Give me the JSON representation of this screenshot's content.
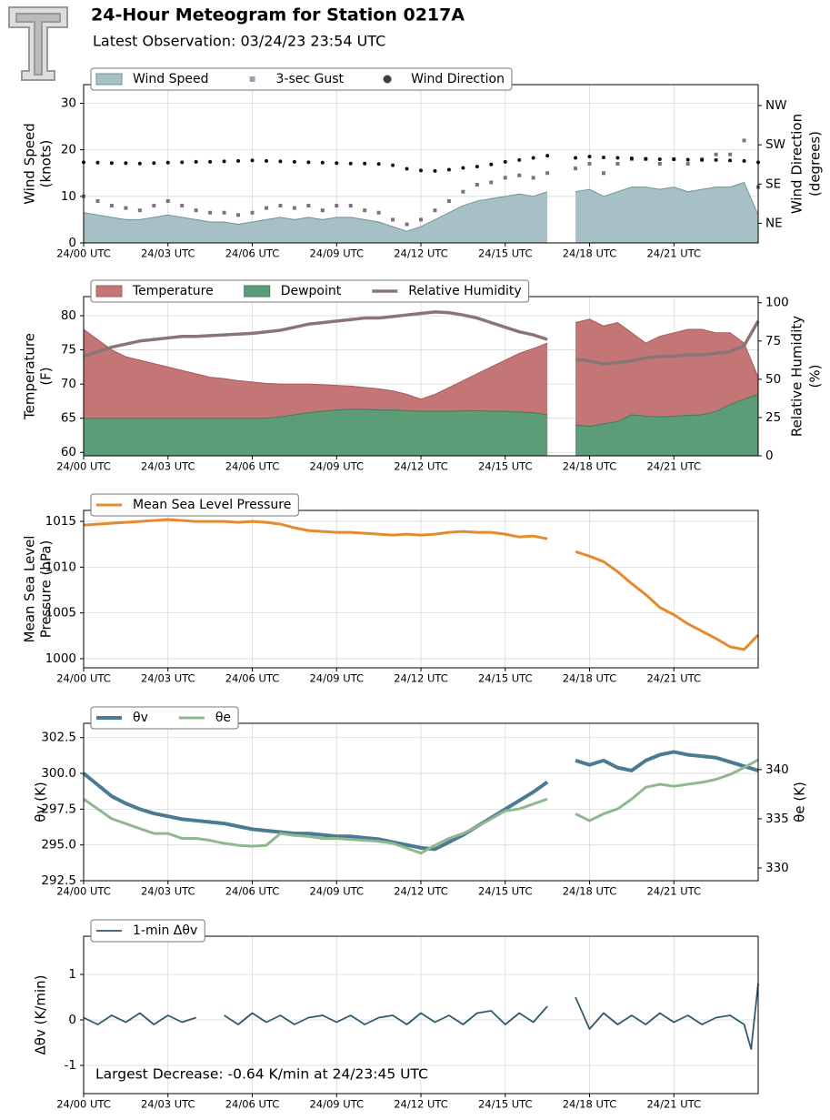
{
  "title": "24-Hour Meteogram for Station 0217A",
  "subtitle": "Latest Observation: 03/24/23 23:54 UTC",
  "chart_data": [
    {
      "type": "line",
      "legend": "upper left",
      "grid": true,
      "ylabel": [
        "Wind Speed",
        "(knots)"
      ],
      "y2label": [
        "Wind Direction",
        "(degrees)"
      ],
      "x": [
        0,
        0.5,
        1,
        1.5,
        2,
        2.5,
        3,
        3.5,
        4,
        4.5,
        5,
        5.5,
        6,
        6.5,
        7,
        7.5,
        8,
        8.5,
        9,
        9.5,
        10,
        10.5,
        11,
        11.5,
        12,
        12.5,
        13,
        13.5,
        14,
        14.5,
        15,
        15.5,
        16,
        16.5,
        17,
        17.5,
        18,
        18.5,
        19,
        19.5,
        20,
        20.5,
        21,
        21.5,
        22,
        22.5,
        23,
        23.5,
        24
      ],
      "xlim": [
        0,
        24
      ],
      "xticks": [
        {
          "value": 0,
          "label": "24/00 UTC"
        },
        {
          "value": 3,
          "label": "24/03 UTC"
        },
        {
          "value": 6,
          "label": "24/06 UTC"
        },
        {
          "value": 9,
          "label": "24/09 UTC"
        },
        {
          "value": 12,
          "label": "24/12 UTC"
        },
        {
          "value": 15,
          "label": "24/15 UTC"
        },
        {
          "value": 18,
          "label": "24/18 UTC"
        },
        {
          "value": 21,
          "label": "24/21 UTC"
        }
      ],
      "ylim": [
        0,
        34
      ],
      "yticks": [
        0,
        10,
        20,
        30
      ],
      "y2lim": [
        0,
        363
      ],
      "y2ticks": [
        {
          "value": 45,
          "label": "NE"
        },
        {
          "value": 135,
          "label": "SE"
        },
        {
          "value": 225,
          "label": "SW"
        },
        {
          "value": 315,
          "label": "NW"
        }
      ],
      "series": [
        {
          "name": "Wind Speed",
          "kind": "area",
          "color": "#a7c0c6",
          "edge": "#6e9499",
          "values": [
            6.5,
            6,
            5.5,
            5,
            5,
            5.5,
            6,
            5.5,
            5,
            4.5,
            4.5,
            4,
            4.5,
            5,
            5.5,
            5,
            5.5,
            5,
            5.5,
            5.5,
            5,
            4.5,
            3.5,
            2.5,
            3.5,
            5,
            6.5,
            8,
            9,
            9.5,
            10,
            10.5,
            10,
            11,
            null,
            11,
            11.5,
            10,
            11,
            12,
            12,
            11.5,
            12,
            11,
            11.5,
            12,
            12,
            13,
            6
          ]
        },
        {
          "name": "3-sec Gust",
          "kind": "scatter",
          "marker": "square",
          "color": "#7b6e8e",
          "values": [
            10,
            9,
            8,
            7.5,
            7,
            8,
            9,
            8,
            7,
            6.5,
            6.5,
            6,
            6.5,
            7.5,
            8,
            7.5,
            8,
            7,
            8,
            8,
            7,
            6.5,
            5,
            4,
            5,
            7,
            9,
            11,
            12.5,
            13,
            14,
            14.5,
            14,
            15,
            null,
            16,
            17,
            15,
            17,
            18,
            18,
            17,
            18,
            17,
            18,
            19,
            19,
            22,
            12
          ]
        },
        {
          "name": "Wind Direction",
          "kind": "scatter",
          "marker": "circle",
          "color": "#111111",
          "axis": "y2",
          "values": [
            185,
            184,
            183,
            183,
            182,
            183,
            184,
            185,
            186,
            186,
            187,
            188,
            189,
            188,
            187,
            186,
            185,
            184,
            183,
            182,
            182,
            181,
            178,
            170,
            166,
            165,
            168,
            172,
            175,
            180,
            186,
            190,
            195,
            200,
            null,
            195,
            198,
            196,
            195,
            194,
            193,
            192,
            192,
            191,
            190,
            190,
            189,
            188,
            185
          ]
        }
      ]
    },
    {
      "type": "line",
      "legend": "upper left",
      "grid": true,
      "ylabel": [
        "Temperature",
        "(F)"
      ],
      "y2label": [
        "Relative Humidity",
        "(%)"
      ],
      "x": [
        0,
        0.5,
        1,
        1.5,
        2,
        2.5,
        3,
        3.5,
        4,
        4.5,
        5,
        5.5,
        6,
        6.5,
        7,
        7.5,
        8,
        8.5,
        9,
        9.5,
        10,
        10.5,
        11,
        11.5,
        12,
        12.5,
        13,
        13.5,
        14,
        14.5,
        15,
        15.5,
        16,
        16.5,
        17,
        17.5,
        18,
        18.5,
        19,
        19.5,
        20,
        20.5,
        21,
        21.5,
        22,
        22.5,
        23,
        23.5,
        24
      ],
      "xlim": [
        0,
        24
      ],
      "xticks": [
        {
          "value": 0,
          "label": "24/00 UTC"
        },
        {
          "value": 3,
          "label": "24/03 UTC"
        },
        {
          "value": 6,
          "label": "24/06 UTC"
        },
        {
          "value": 9,
          "label": "24/09 UTC"
        },
        {
          "value": 12,
          "label": "24/12 UTC"
        },
        {
          "value": 15,
          "label": "24/15 UTC"
        },
        {
          "value": 18,
          "label": "24/18 UTC"
        },
        {
          "value": 21,
          "label": "24/21 UTC"
        }
      ],
      "ylim": [
        59.5,
        82.8
      ],
      "yticks": [
        60,
        65,
        70,
        75,
        80
      ],
      "y2lim": [
        0,
        104
      ],
      "y2ticks": [
        0,
        25,
        50,
        75,
        100
      ],
      "series": [
        {
          "name": "Temperature",
          "kind": "area",
          "color": "#c47677",
          "edge": "#a85a5c",
          "values": [
            78,
            76.5,
            75,
            74,
            73.5,
            73,
            72.5,
            72,
            71.5,
            71,
            70.8,
            70.5,
            70.3,
            70.1,
            70,
            70,
            70,
            69.9,
            69.8,
            69.7,
            69.5,
            69.3,
            69,
            68.5,
            67.8,
            68.5,
            69.5,
            70.5,
            71.5,
            72.5,
            73.5,
            74.5,
            75.2,
            76,
            null,
            79,
            79.5,
            78.5,
            79,
            77.5,
            76,
            77,
            77.5,
            78,
            78,
            77.5,
            77.5,
            76,
            71
          ]
        },
        {
          "name": "Dewpoint",
          "kind": "area",
          "color": "#5c9d78",
          "edge": "#3f7a57",
          "values": [
            65,
            65,
            65,
            65,
            65,
            65,
            65,
            65,
            65,
            65,
            65,
            65,
            65,
            65,
            65.2,
            65.5,
            65.8,
            66,
            66.2,
            66.3,
            66.3,
            66.2,
            66.2,
            66.1,
            66,
            66,
            66,
            66.1,
            66.1,
            66,
            66,
            65.9,
            65.8,
            65.5,
            null,
            64,
            63.8,
            64.2,
            64.5,
            65.5,
            65.3,
            65.2,
            65.3,
            65.4,
            65.5,
            66,
            67,
            67.8,
            68.5
          ]
        },
        {
          "name": "Relative Humidity",
          "kind": "line",
          "color": "#8a7575",
          "width": 3.5,
          "axis": "y2",
          "values": [
            65,
            68,
            71,
            73,
            75,
            76,
            77,
            78,
            78,
            78.5,
            79,
            79.5,
            80,
            81,
            82,
            84,
            86,
            87,
            88,
            89,
            90,
            90,
            91,
            92,
            93,
            94,
            93.5,
            92,
            90,
            87,
            84,
            81,
            79,
            76,
            null,
            63,
            62,
            60,
            61,
            62,
            64,
            65,
            65,
            66,
            66,
            67,
            68,
            72,
            88
          ]
        }
      ]
    },
    {
      "type": "line",
      "legend": "upper left",
      "grid": true,
      "ylabel": [
        "Mean Sea Level",
        "Pressure (hPa)"
      ],
      "x": [
        0,
        0.5,
        1,
        1.5,
        2,
        2.5,
        3,
        3.5,
        4,
        4.5,
        5,
        5.5,
        6,
        6.5,
        7,
        7.5,
        8,
        8.5,
        9,
        9.5,
        10,
        10.5,
        11,
        11.5,
        12,
        12.5,
        13,
        13.5,
        14,
        14.5,
        15,
        15.5,
        16,
        16.5,
        17,
        17.5,
        18,
        18.5,
        19,
        19.5,
        20,
        20.5,
        21,
        21.5,
        22,
        22.5,
        23,
        23.5,
        24
      ],
      "xlim": [
        0,
        24
      ],
      "xticks": [
        {
          "value": 0,
          "label": "24/00 UTC"
        },
        {
          "value": 3,
          "label": "24/03 UTC"
        },
        {
          "value": 6,
          "label": "24/06 UTC"
        },
        {
          "value": 9,
          "label": "24/09 UTC"
        },
        {
          "value": 12,
          "label": "24/12 UTC"
        },
        {
          "value": 15,
          "label": "24/15 UTC"
        },
        {
          "value": 18,
          "label": "24/18 UTC"
        },
        {
          "value": 21,
          "label": "24/21 UTC"
        }
      ],
      "ylim": [
        999,
        1016.2
      ],
      "yticks": [
        1000,
        1005,
        1010,
        1015
      ],
      "series": [
        {
          "name": "Mean Sea Level Pressure",
          "kind": "line",
          "color": "#e68a30",
          "width": 3,
          "values": [
            1014.6,
            1014.7,
            1014.8,
            1014.9,
            1015,
            1015.1,
            1015.2,
            1015.1,
            1015,
            1015,
            1015,
            1014.9,
            1015,
            1014.9,
            1014.7,
            1014.3,
            1014,
            1013.9,
            1013.8,
            1013.8,
            1013.7,
            1013.6,
            1013.5,
            1013.6,
            1013.5,
            1013.6,
            1013.8,
            1013.9,
            1013.8,
            1013.8,
            1013.6,
            1013.3,
            1013.4,
            1013.1,
            null,
            1011.7,
            1011.2,
            1010.6,
            1009.5,
            1008.2,
            1007,
            1005.6,
            1004.8,
            1003.8,
            1003,
            1002.2,
            1001.3,
            1001,
            1002.6
          ]
        }
      ]
    },
    {
      "type": "line",
      "legend": "upper left",
      "grid": true,
      "ylabel": [
        "θv (K)"
      ],
      "y2label": [
        "θe (K)"
      ],
      "x": [
        0,
        0.5,
        1,
        1.5,
        2,
        2.5,
        3,
        3.5,
        4,
        4.5,
        5,
        5.5,
        6,
        6.5,
        7,
        7.5,
        8,
        8.5,
        9,
        9.5,
        10,
        10.5,
        11,
        11.5,
        12,
        12.5,
        13,
        13.5,
        14,
        14.5,
        15,
        15.5,
        16,
        16.5,
        17,
        17.5,
        18,
        18.5,
        19,
        19.5,
        20,
        20.5,
        21,
        21.5,
        22,
        22.5,
        23,
        23.5,
        24
      ],
      "xlim": [
        0,
        24
      ],
      "xticks": [
        {
          "value": 0,
          "label": "24/00 UTC"
        },
        {
          "value": 3,
          "label": "24/03 UTC"
        },
        {
          "value": 6,
          "label": "24/06 UTC"
        },
        {
          "value": 9,
          "label": "24/09 UTC"
        },
        {
          "value": 12,
          "label": "24/12 UTC"
        },
        {
          "value": 15,
          "label": "24/15 UTC"
        },
        {
          "value": 18,
          "label": "24/18 UTC"
        },
        {
          "value": 21,
          "label": "24/21 UTC"
        }
      ],
      "ylim": [
        292.5,
        303.5
      ],
      "yticks": [
        {
          "value": 292.5,
          "label": "292.5"
        },
        {
          "value": 295,
          "label": "295.0"
        },
        {
          "value": 297.5,
          "label": "297.5"
        },
        {
          "value": 300,
          "label": "300.0"
        },
        {
          "value": 302.5,
          "label": "302.5"
        }
      ],
      "y2lim": [
        328.7,
        344.7
      ],
      "y2ticks": [
        330,
        335,
        340
      ],
      "series": [
        {
          "name": "θv",
          "kind": "line",
          "color": "#4a7a94",
          "width": 4,
          "values": [
            300,
            299.2,
            298.4,
            297.9,
            297.5,
            297.2,
            297,
            296.8,
            296.7,
            296.6,
            296.5,
            296.3,
            296.1,
            296,
            295.9,
            295.8,
            295.8,
            295.7,
            295.6,
            295.6,
            295.5,
            295.4,
            295.2,
            295,
            294.8,
            294.7,
            295.2,
            295.7,
            296.3,
            296.9,
            297.5,
            298.1,
            298.7,
            299.4,
            null,
            300.9,
            300.6,
            300.9,
            300.4,
            300.2,
            300.9,
            301.3,
            301.5,
            301.3,
            301.2,
            301.1,
            300.8,
            300.5,
            300.2
          ]
        },
        {
          "name": "θe",
          "kind": "line",
          "color": "#8fb88e",
          "width": 3,
          "axis": "y2",
          "values": [
            337,
            336,
            335,
            334.5,
            334,
            333.5,
            333.5,
            333,
            333,
            332.8,
            332.5,
            332.3,
            332.2,
            332.3,
            333.5,
            333.3,
            333.2,
            333,
            333,
            332.9,
            332.8,
            332.7,
            332.5,
            332,
            331.5,
            332.3,
            333,
            333.5,
            334.2,
            335,
            335.8,
            336,
            336.5,
            337,
            null,
            335.5,
            334.8,
            335.5,
            336,
            337,
            338.2,
            338.5,
            338.3,
            338.5,
            338.7,
            339,
            339.5,
            340.2,
            341
          ]
        }
      ]
    },
    {
      "type": "line",
      "legend": "upper left",
      "grid": true,
      "ylabel": [
        "Δθv (K/min)"
      ],
      "annotation": "Largest Decrease: -0.64 K/min at 24/23:45 UTC",
      "x": [
        0,
        0.5,
        1,
        1.5,
        2,
        2.5,
        3,
        3.5,
        4,
        4.5,
        5,
        5.5,
        6,
        6.5,
        7,
        7.5,
        8,
        8.5,
        9,
        9.5,
        10,
        10.5,
        11,
        11.5,
        12,
        12.5,
        13,
        13.5,
        14,
        14.5,
        15,
        15.5,
        16,
        16.5,
        17,
        17.5,
        18,
        18.5,
        19,
        19.5,
        20,
        20.5,
        21,
        21.5,
        22,
        22.5,
        23,
        23.5,
        23.75,
        24
      ],
      "xlim": [
        0,
        24
      ],
      "xticks": [
        {
          "value": 0,
          "label": "24/00 UTC"
        },
        {
          "value": 3,
          "label": "24/03 UTC"
        },
        {
          "value": 6,
          "label": "24/06 UTC"
        },
        {
          "value": 9,
          "label": "24/09 UTC"
        },
        {
          "value": 12,
          "label": "24/12 UTC"
        },
        {
          "value": 15,
          "label": "24/15 UTC"
        },
        {
          "value": 18,
          "label": "24/18 UTC"
        },
        {
          "value": 21,
          "label": "24/21 UTC"
        }
      ],
      "ylim": [
        -1.62,
        1.84
      ],
      "yticks": [
        -1,
        0,
        1
      ],
      "series": [
        {
          "name": "1-min Δθv",
          "kind": "line",
          "color": "#2f5a6e",
          "width": 1.8,
          "values": [
            0.05,
            -0.1,
            0.1,
            -0.05,
            0.15,
            -0.1,
            0.1,
            -0.05,
            0.05,
            null,
            0.1,
            -0.1,
            0.15,
            -0.05,
            0.1,
            -0.1,
            0.05,
            0.1,
            -0.05,
            0.1,
            -0.1,
            0.05,
            0.1,
            -0.1,
            0.15,
            -0.05,
            0.1,
            -0.1,
            0.15,
            0.2,
            -0.1,
            0.15,
            -0.05,
            0.3,
            null,
            0.5,
            -0.2,
            0.15,
            -0.1,
            0.1,
            -0.1,
            0.15,
            -0.05,
            0.1,
            -0.1,
            0.05,
            0.1,
            -0.1,
            -0.64,
            0.8
          ]
        }
      ]
    }
  ]
}
